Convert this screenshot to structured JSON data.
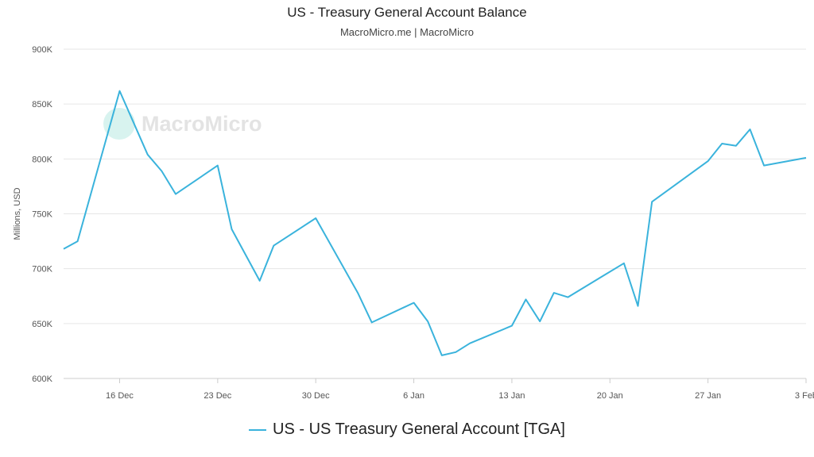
{
  "header": {
    "title": "US - Treasury General Account Balance",
    "subtitle": "MacroMicro.me | MacroMicro"
  },
  "watermark": {
    "text": "MacroMicro",
    "icon": "macromicro-logo-icon"
  },
  "legend": {
    "label": "US - US Treasury General Account [TGA]"
  },
  "colors": {
    "series": "#3ab3dc",
    "grid": "#e6e6e6",
    "axis_text": "#555555"
  },
  "chart_data": {
    "type": "line",
    "title": "US - Treasury General Account Balance",
    "ylabel": "Millions, USD",
    "xlabel": "",
    "ylim": [
      600,
      900
    ],
    "y_ticks": [
      600,
      650,
      700,
      750,
      800,
      850,
      900
    ],
    "y_tick_labels": [
      "600K",
      "650K",
      "700K",
      "750K",
      "800K",
      "850K",
      "900K"
    ],
    "x_ticks": [
      "2024-12-16",
      "2024-12-23",
      "2024-12-30",
      "2025-01-06",
      "2025-01-13",
      "2025-01-20",
      "2025-01-27",
      "2025-02-03"
    ],
    "x_tick_labels": [
      "16 Dec",
      "23 Dec",
      "30 Dec",
      "6 Jan",
      "13 Jan",
      "20 Jan",
      "27 Jan",
      "3 Feb"
    ],
    "xlim": [
      "2024-12-12",
      "2025-02-03"
    ],
    "grid": true,
    "legend_position": "bottom",
    "series": [
      {
        "name": "US - US Treasury General Account [TGA]",
        "x": [
          "2024-12-12",
          "2024-12-13",
          "2024-12-16",
          "2024-12-18",
          "2024-12-19",
          "2024-12-20",
          "2024-12-23",
          "2024-12-24",
          "2024-12-26",
          "2024-12-27",
          "2024-12-30",
          "2025-01-02",
          "2025-01-03",
          "2025-01-06",
          "2025-01-07",
          "2025-01-08",
          "2025-01-09",
          "2025-01-10",
          "2025-01-13",
          "2025-01-14",
          "2025-01-15",
          "2025-01-16",
          "2025-01-17",
          "2025-01-21",
          "2025-01-22",
          "2025-01-23",
          "2025-01-27",
          "2025-01-28",
          "2025-01-29",
          "2025-01-30",
          "2025-01-31",
          "2025-02-03"
        ],
        "values": [
          718,
          725,
          862,
          804,
          789,
          768,
          794,
          736,
          689,
          721,
          746,
          678,
          651,
          669,
          652,
          621,
          624,
          632,
          648,
          672,
          652,
          678,
          674,
          705,
          666,
          761,
          798,
          814,
          812,
          827,
          794,
          801
        ]
      }
    ]
  }
}
